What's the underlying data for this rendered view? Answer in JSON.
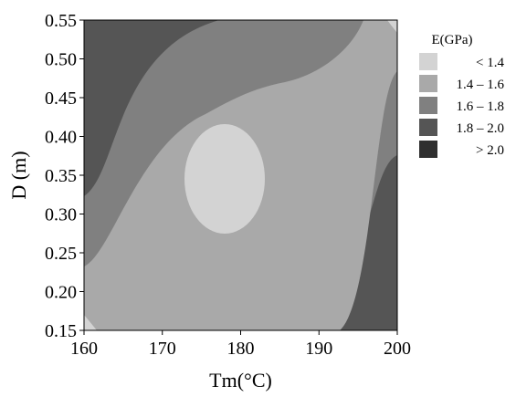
{
  "chart_data": {
    "type": "heatmap",
    "subtype": "contour",
    "xlabel": "Tm(°C)",
    "ylabel": "D (m)",
    "x_ticks": [
      "160",
      "170",
      "180",
      "190",
      "200"
    ],
    "y_ticks": [
      "0.15",
      "0.20",
      "0.25",
      "0.30",
      "0.35",
      "0.40",
      "0.45",
      "0.50",
      "0.55"
    ],
    "xlim": [
      160,
      200
    ],
    "ylim": [
      0.15,
      0.55
    ],
    "legend": {
      "title": "E(GPa)",
      "position": "right",
      "levels": [
        {
          "label": "< 1.4",
          "color": "#d3d3d3"
        },
        {
          "label": "1.4 – 1.6",
          "color": "#a9a9a9"
        },
        {
          "label": "1.6 – 1.8",
          "color": "#808080"
        },
        {
          "label": "1.8 – 2.0",
          "color": "#555555"
        },
        {
          "label": "> 2.0",
          "color": "#2f2f2f"
        }
      ]
    },
    "regions": [
      {
        "level": "< 1.4",
        "shape": "central ellipse",
        "center": {
          "Tm": 179.5,
          "D": 0.34
        },
        "extent": {
          "Tm": [
            173,
            186
          ],
          "D": [
            0.275,
            0.415
          ]
        }
      },
      {
        "level": "< 1.4",
        "shape": "corner patch",
        "corner": "bottom-left",
        "extent": {
          "Tm": [
            160,
            161
          ],
          "D": [
            0.15,
            0.17
          ]
        }
      },
      {
        "level": "< 1.4",
        "shape": "corner patch",
        "corner": "top-right",
        "extent": {
          "Tm": [
            199,
            200
          ],
          "D": [
            0.53,
            0.55
          ]
        }
      }
    ]
  }
}
